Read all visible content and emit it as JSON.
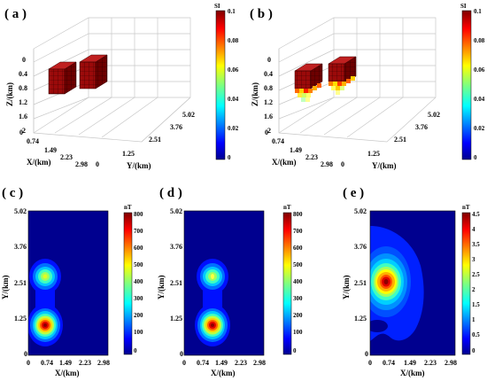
{
  "panels": [
    {
      "label": "( a )",
      "type": "3d-block-model"
    },
    {
      "label": "( b )",
      "type": "3d-inversion-model"
    },
    {
      "label": "( c )",
      "type": "contour"
    },
    {
      "label": "( d )",
      "type": "contour"
    },
    {
      "label": "( e )",
      "type": "contour"
    }
  ],
  "axes3d": {
    "z_label": "Z/(km)",
    "x_label": "X/(km)",
    "y_label": "Y/(km)",
    "z_ticks": [
      "0",
      "0.4",
      "0.8",
      "1.2",
      "1.6",
      "2"
    ],
    "x_ticks": [
      "0",
      "0.74",
      "1.49",
      "2.23",
      "2.98"
    ],
    "y_ticks": [
      "0",
      "1.25",
      "2.51",
      "3.76",
      "5.02"
    ]
  },
  "colorbar_si": {
    "unit": "SI",
    "ticks": [
      "0.1",
      "0.08",
      "0.06",
      "0.04",
      "0.02",
      "0"
    ]
  },
  "contour_axes": {
    "x_label": "X/(km)",
    "y_label": "Y/(km)",
    "x_ticks": [
      "0",
      "0.74",
      "1.49",
      "2.23",
      "2.98"
    ],
    "y_ticks": [
      "0",
      "1.25",
      "2.51",
      "3.76",
      "5.02"
    ]
  },
  "colorbar_c": {
    "unit": "nT",
    "ticks": [
      "800",
      "700",
      "600",
      "500",
      "400",
      "300",
      "200",
      "100",
      "0"
    ]
  },
  "colorbar_d": {
    "unit": "nT",
    "ticks": [
      "800",
      "700",
      "600",
      "500",
      "400",
      "300",
      "200",
      "100",
      "0"
    ]
  },
  "colorbar_e": {
    "unit": "nT",
    "ticks": [
      "4.5",
      "4",
      "3.5",
      "3",
      "2.5",
      "2",
      "1.5",
      "1",
      "0.5",
      "0"
    ]
  },
  "colors": {
    "block": "#8b0000",
    "low": "#00008f",
    "high": "#800000"
  }
}
